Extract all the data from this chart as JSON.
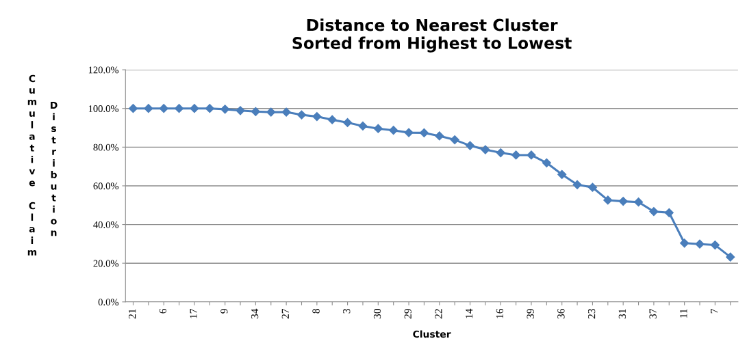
{
  "chart_data": {
    "type": "line",
    "title": "Distance to Nearest Cluster\nSorted from Highest to Lowest",
    "xlabel": "Cluster",
    "ylabel": "Cumulative Claim Distribution",
    "categories": [
      "21",
      null,
      "6",
      null,
      "17",
      null,
      "9",
      null,
      "34",
      null,
      "27",
      null,
      "8",
      null,
      "3",
      null,
      "30",
      null,
      "29",
      null,
      "22",
      null,
      "14",
      null,
      "16",
      null,
      "39",
      null,
      "36",
      null,
      "23",
      null,
      "31",
      null,
      "37",
      null,
      "11",
      null,
      "7",
      null
    ],
    "series": [
      {
        "color": "#4a7ebb",
        "values": [
          100,
          100,
          100,
          100,
          100,
          100,
          99.6,
          98.9,
          98.4,
          98.1,
          98.1,
          96.7,
          95.8,
          94.2,
          92.7,
          90.9,
          89.6,
          88.7,
          87.5,
          87.4,
          85.8,
          83.8,
          80.8,
          78.7,
          77.1,
          75.9,
          75.9,
          71.9,
          65.9,
          60.6,
          59.2,
          52.6,
          52.0,
          51.6,
          46.7,
          46.1,
          30.4,
          29.9,
          29.4,
          23.2
        ]
      }
    ],
    "ylim": [
      0,
      120
    ],
    "yticks": [
      {
        "value": 0,
        "label": "0.0%"
      },
      {
        "value": 20,
        "label": "20.0%"
      },
      {
        "value": 40,
        "label": "40.0%"
      },
      {
        "value": 60,
        "label": "60.0%"
      },
      {
        "value": 80,
        "label": "80.0%"
      },
      {
        "value": 100,
        "label": "100.0%"
      },
      {
        "value": 120,
        "label": "120.0%"
      }
    ],
    "grid": "y",
    "marker": "diamond",
    "line_style": "solid"
  }
}
